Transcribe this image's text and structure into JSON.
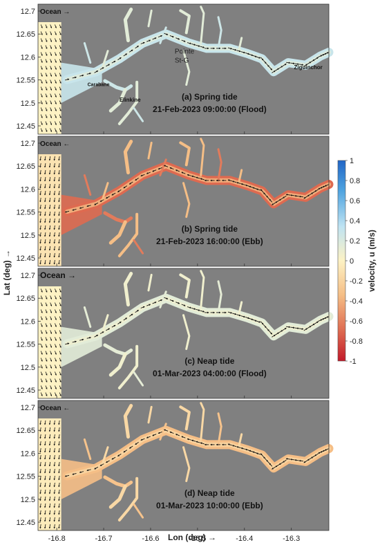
{
  "figure": {
    "ylabel": "Lat (deg) →",
    "xlabel": "Lon (deg) →",
    "colorbar_label": "velocity, u (m/s)",
    "colorbar_ticks": [
      "1",
      "0.8",
      "0.6",
      "0.4",
      "0.2",
      "0",
      "-0.2",
      "-0.4",
      "-0.6",
      "-0.8",
      "-1"
    ],
    "colorbar_range": [
      -1,
      1
    ],
    "colors": {
      "land": "#808080",
      "positive": "#2166c6",
      "negative": "#c21a2a",
      "zero": "#fdf2c4"
    }
  },
  "chart_data": [
    {
      "type": "map-vector",
      "title": "(a) Spring tide",
      "subtitle": "21-Feb-2023 09:00:00 (Flood)",
      "ocean_label": "Ocean →",
      "place_labels": [
        "Ocean →",
        "Pointe",
        "St-G",
        "Ziguinchor",
        "Carabane",
        "Elinkine"
      ],
      "xlim": [
        -16.84,
        -16.22
      ],
      "ylim": [
        12.44,
        12.72
      ],
      "yticks": [
        "12.7",
        "12.65",
        "12.6",
        "12.55",
        "12.5",
        "12.45"
      ],
      "xticks": [
        "-16.8",
        "-16.7",
        "-16.6",
        "-16.5",
        "-16.4",
        "-16.3"
      ],
      "tide": "flood",
      "velocity_main": 0.3,
      "velocity_ocean": 0.0
    },
    {
      "type": "map-vector",
      "title": "(b) Spring tide",
      "subtitle": "21-Feb-2023 16:00:00 (Ebb)",
      "ocean_label": "Ocean ←",
      "place_labels": [
        "Ocean ←"
      ],
      "xlim": [
        -16.84,
        -16.22
      ],
      "ylim": [
        12.44,
        12.72
      ],
      "yticks": [
        "12.7",
        "12.65",
        "12.6",
        "12.55",
        "12.5",
        "12.45"
      ],
      "xticks": [
        "-16.8",
        "-16.7",
        "-16.6",
        "-16.5",
        "-16.4",
        "-16.3"
      ],
      "tide": "ebb",
      "velocity_main": -0.7,
      "velocity_ocean": -0.1
    },
    {
      "type": "map-vector",
      "title": "(c) Neap tide",
      "subtitle": "01-Mar-2023 04:00:00 (Flood)",
      "ocean_label": "Ocean →",
      "place_labels": [
        "Ocean →"
      ],
      "xlim": [
        -16.84,
        -16.22
      ],
      "ylim": [
        12.44,
        12.72
      ],
      "yticks": [
        "12.7",
        "12.65",
        "12.6",
        "12.55",
        "12.5",
        "12.45"
      ],
      "xticks": [
        "-16.8",
        "-16.7",
        "-16.6",
        "-16.5",
        "-16.4",
        "-16.3"
      ],
      "tide": "flood",
      "velocity_main": 0.15,
      "velocity_ocean": 0.0
    },
    {
      "type": "map-vector",
      "title": "(d) Neap tide",
      "subtitle": "01-Mar-2023 10:00:00 (Ebb)",
      "ocean_label": "Ocean ←",
      "place_labels": [
        "Ocean ←"
      ],
      "xlim": [
        -16.84,
        -16.22
      ],
      "ylim": [
        12.44,
        12.72
      ],
      "yticks": [
        "12.7",
        "12.65",
        "12.6",
        "12.55",
        "12.5",
        "12.45"
      ],
      "xticks": [
        "-16.8",
        "-16.7",
        "-16.6",
        "-16.5",
        "-16.4",
        "-16.3"
      ],
      "tide": "ebb",
      "velocity_main": -0.35,
      "velocity_ocean": -0.05
    }
  ]
}
